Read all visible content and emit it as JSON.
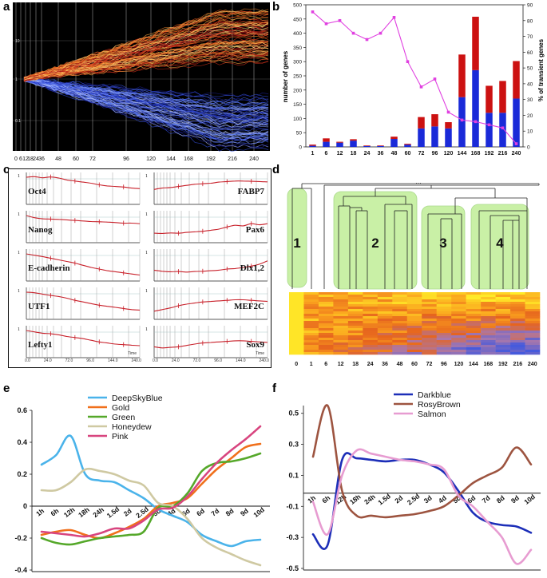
{
  "labels": {
    "a": "a",
    "b": "b",
    "c": "c",
    "d": "d",
    "e": "e",
    "f": "f"
  },
  "panel_a": {
    "x_ticks": [
      "0",
      "6",
      "12",
      "18",
      "24",
      "36",
      "48",
      "60",
      "72",
      "96",
      "120",
      "144",
      "168",
      "192",
      "216",
      "240"
    ],
    "y_ticks": [
      "10",
      "1",
      "0.1"
    ]
  },
  "panel_b": {
    "left_axis_label": "number of genes",
    "right_axis_label": "% of transient genes",
    "y_left_ticks": [
      "0",
      "50",
      "100",
      "150",
      "200",
      "250",
      "300",
      "350",
      "400",
      "450",
      "500"
    ],
    "y_right_ticks": [
      "0",
      "10",
      "20",
      "30",
      "40",
      "50",
      "60",
      "70",
      "80",
      "90"
    ]
  },
  "panel_c": {
    "genes_left": [
      "Oct4",
      "Nanog",
      "E-cadherin",
      "UTF1",
      "Lefty1"
    ],
    "genes_right": [
      "FABP7",
      "Pax6",
      "Dlx1,2",
      "MEF2C",
      "Sox9"
    ],
    "left_val_labels": [
      "1",
      "1",
      "1",
      "1",
      "1"
    ],
    "right_val_labels": [
      "1",
      "1",
      "1",
      "1",
      "1"
    ],
    "time_label": "Time",
    "x_ticks_left": [
      "0.0",
      "24.0",
      "72.0",
      "96.0",
      "144.0",
      "240.0"
    ],
    "x_ticks_right": [
      "0.0",
      "24.0",
      "72.0",
      "96.0",
      "144.0",
      "240.0"
    ]
  },
  "panel_d": {
    "clusters": [
      "1",
      "2",
      "3",
      "4"
    ],
    "x_ticks": [
      "0",
      "1",
      "6",
      "12",
      "18",
      "24",
      "36",
      "48",
      "60",
      "72",
      "96",
      "120",
      "144",
      "168",
      "192",
      "216",
      "240"
    ],
    "root_label": "..."
  },
  "chart_data": [
    {
      "id": "b",
      "type": "bar",
      "categories": [
        "1",
        "6",
        "12",
        "18",
        "24",
        "36",
        "48",
        "60",
        "72",
        "96",
        "120",
        "144",
        "168",
        "192",
        "216",
        "240"
      ],
      "series": [
        {
          "name": "blue",
          "color": "#1a2ad8",
          "values": [
            4,
            18,
            15,
            22,
            3,
            3,
            28,
            8,
            65,
            72,
            65,
            175,
            270,
            120,
            120,
            170
          ]
        },
        {
          "name": "red",
          "color": "#cc1111",
          "values": [
            4,
            12,
            3,
            5,
            2,
            2,
            8,
            3,
            40,
            43,
            22,
            150,
            188,
            95,
            112,
            132
          ]
        },
        {
          "name": "% of transient genes",
          "color": "#e040e0",
          "axis": "right",
          "values": [
            85.5,
            78,
            80,
            72,
            68,
            72,
            82,
            54,
            38,
            43,
            22,
            17,
            16,
            14,
            12,
            2
          ]
        }
      ],
      "ylim_left": [
        0,
        500
      ],
      "ylim_right": [
        0,
        90
      ],
      "ylabel": "number of genes",
      "y2label": "% of transient genes"
    },
    {
      "id": "e",
      "type": "line",
      "x": [
        "1h",
        "6h",
        "12h",
        "18h",
        "24h",
        "1.5d",
        "2d",
        "2.5d",
        "3d",
        "4d",
        "5d",
        "6d",
        "7d",
        "8d",
        "9d",
        "10d"
      ],
      "ylim": [
        -0.4,
        0.6
      ],
      "y_ticks": [
        "0.6",
        "0.4",
        "0.2",
        "0",
        "-0.2",
        "-0.4"
      ],
      "series": [
        {
          "name": "DeepSkyBlue",
          "color": "#4ab3ea",
          "values": [
            0.26,
            0.32,
            0.44,
            0.2,
            0.16,
            0.15,
            0.1,
            0.05,
            -0.02,
            -0.06,
            -0.1,
            -0.18,
            -0.22,
            -0.25,
            -0.22,
            -0.21
          ]
        },
        {
          "name": "Gold",
          "color": "#f0701c",
          "values": [
            -0.18,
            -0.16,
            -0.15,
            -0.18,
            -0.2,
            -0.17,
            -0.13,
            -0.08,
            0.0,
            0.02,
            0.05,
            0.14,
            0.23,
            0.3,
            0.37,
            0.39
          ]
        },
        {
          "name": "Green",
          "color": "#55a82a",
          "values": [
            -0.2,
            -0.23,
            -0.24,
            -0.22,
            -0.2,
            -0.19,
            -0.18,
            -0.16,
            -0.01,
            0.0,
            0.08,
            0.22,
            0.27,
            0.28,
            0.3,
            0.33
          ]
        },
        {
          "name": "Honeydew",
          "color": "#cfc9a2",
          "values": [
            0.1,
            0.1,
            0.15,
            0.23,
            0.22,
            0.2,
            0.16,
            0.13,
            0.02,
            0.0,
            -0.08,
            -0.2,
            -0.26,
            -0.3,
            -0.34,
            -0.37
          ]
        },
        {
          "name": "Pink",
          "color": "#d8457f",
          "values": [
            -0.16,
            -0.17,
            -0.18,
            -0.19,
            -0.17,
            -0.14,
            -0.14,
            -0.09,
            -0.02,
            -0.01,
            0.06,
            0.17,
            0.27,
            0.35,
            0.42,
            0.5
          ]
        }
      ]
    },
    {
      "id": "f",
      "type": "line",
      "x": [
        "1h",
        "6h",
        "12h",
        "18h",
        "24h",
        "1.5d",
        "2d",
        "2.5d",
        "3d",
        "4d",
        "5d",
        "6d",
        "7d",
        "8d",
        "9d",
        "10d"
      ],
      "ylim": [
        -0.5,
        0.55
      ],
      "y_ticks": [
        "0.5",
        "0.3",
        "0.1",
        "-0.1",
        "-0.3",
        "-0.5"
      ],
      "series": [
        {
          "name": "Darkblue",
          "color": "#1c2eb8",
          "values": [
            -0.28,
            -0.35,
            0.2,
            0.21,
            0.2,
            0.19,
            0.2,
            0.2,
            0.17,
            0.12,
            0.0,
            -0.14,
            -0.2,
            -0.22,
            -0.23,
            -0.27
          ]
        },
        {
          "name": "RosyBrown",
          "color": "#9d5440",
          "values": [
            0.22,
            0.55,
            0.0,
            -0.16,
            -0.16,
            -0.17,
            -0.16,
            -0.15,
            -0.13,
            -0.1,
            -0.03,
            0.05,
            0.1,
            0.15,
            0.28,
            0.17
          ]
        },
        {
          "name": "Salmon",
          "color": "#e79cd1",
          "values": [
            -0.07,
            -0.28,
            0.1,
            0.26,
            0.24,
            0.22,
            0.2,
            0.19,
            0.17,
            0.14,
            -0.03,
            -0.1,
            -0.2,
            -0.3,
            -0.47,
            -0.38
          ]
        }
      ]
    }
  ]
}
